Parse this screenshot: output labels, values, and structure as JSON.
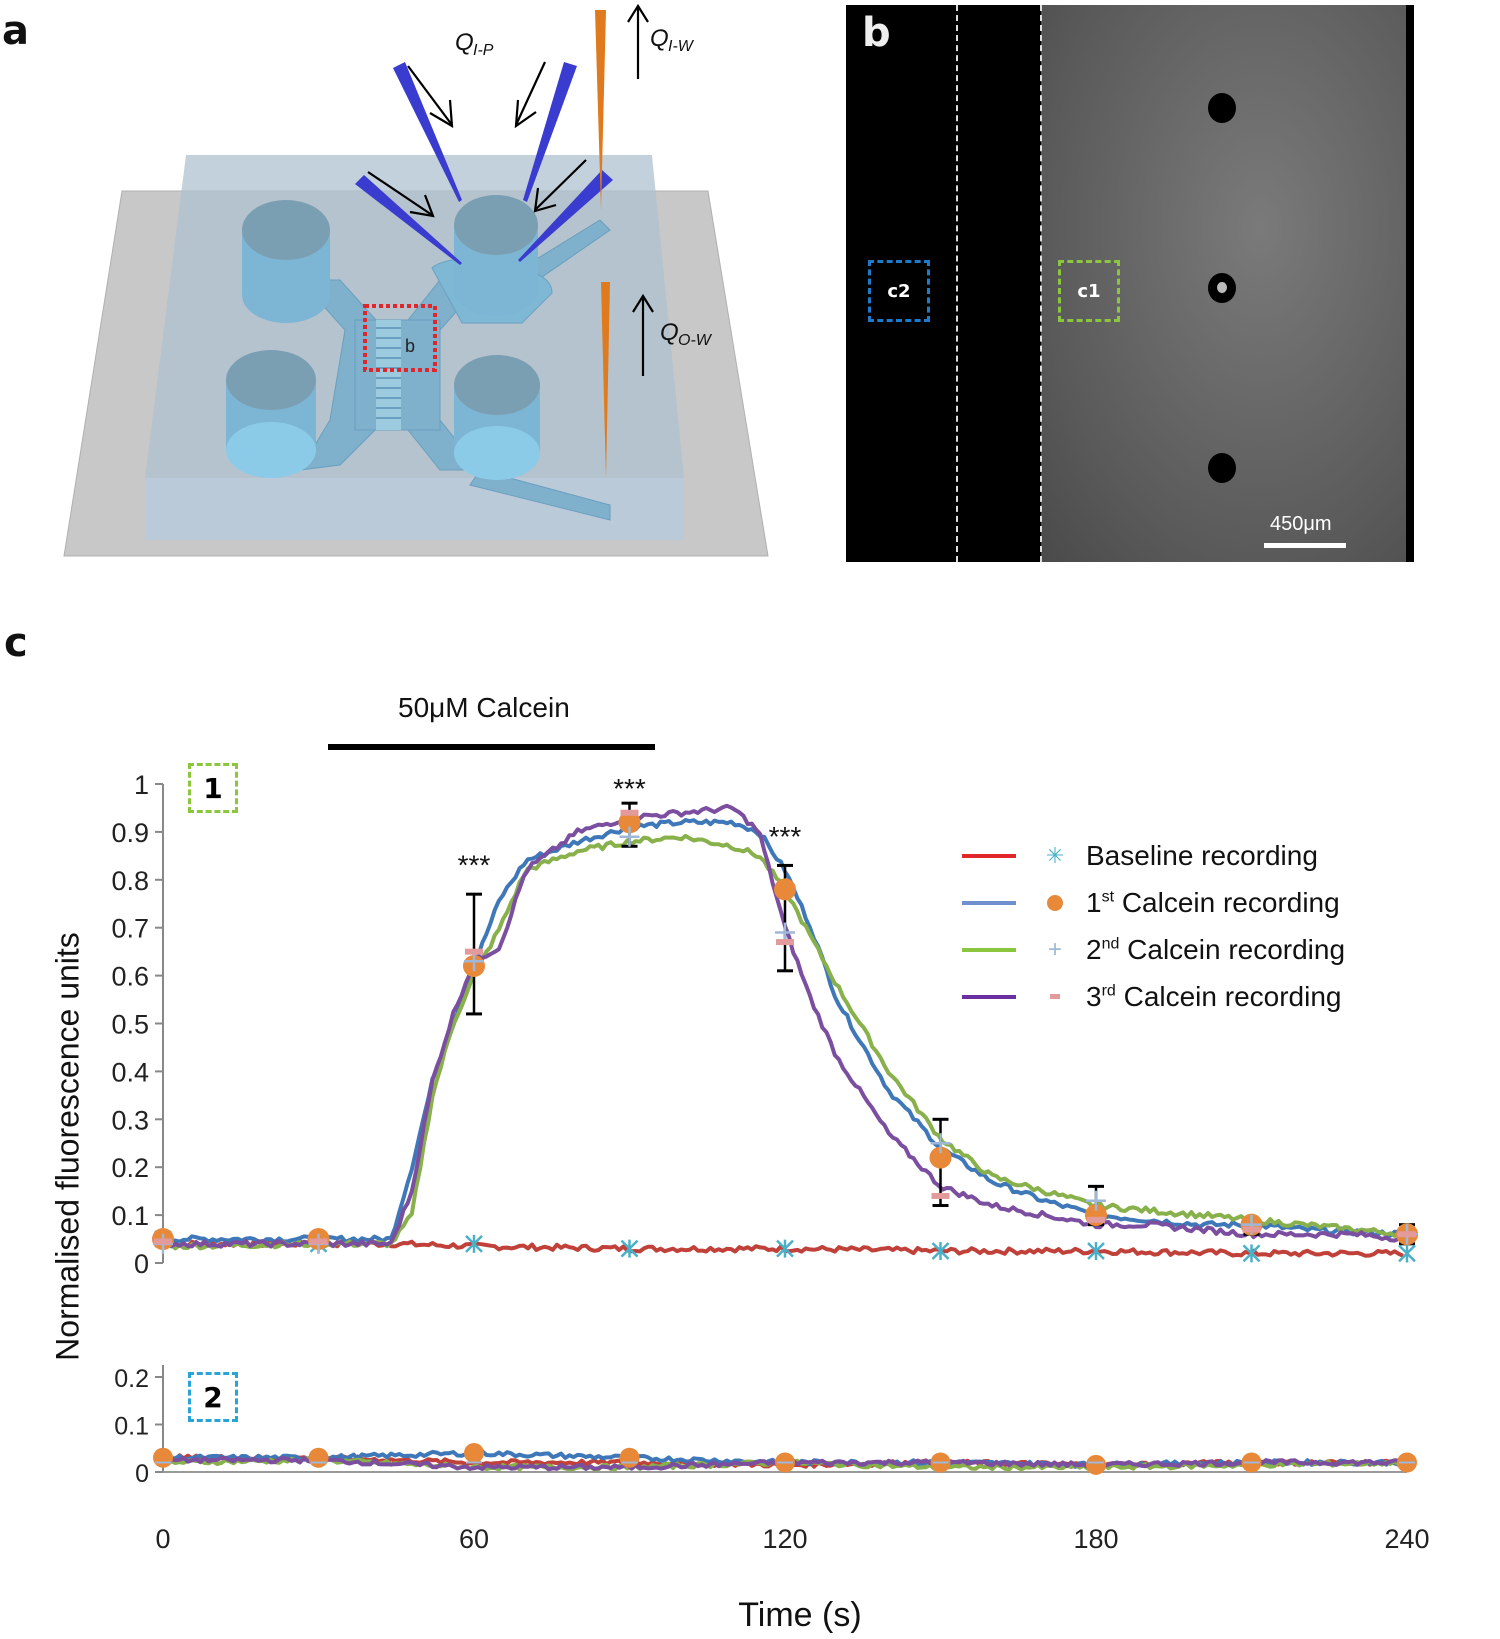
{
  "panels": {
    "a": {
      "letter": "a",
      "labels": {
        "q_ip": "Q",
        "q_ip_sub": "I-P",
        "q_iw": "Q",
        "q_iw_sub": "I-W",
        "q_ow": "Q",
        "q_ow_sub": "O-W",
        "region_b": "b"
      },
      "colors": {
        "base_plate": "#c6c6c6",
        "chip_body": "#9fb8c8",
        "channels": "#8dbdd6",
        "perfusion_pipettes": "#3a3ccf",
        "withdrawal_pipettes": "#e07a1e",
        "region_box": "#e0262b"
      }
    },
    "b": {
      "letter": "b",
      "roi_c2": "c2",
      "roi_c1": "c1",
      "scale_bar": "450μm",
      "colors": {
        "roi_c2": "#1f7ac9",
        "roi_c1": "#8cc63f",
        "background_dark": "#000000",
        "background_gray": "#6a6a6a"
      }
    },
    "c": {
      "letter": "c",
      "stimulus_label": "50μM Calcein",
      "subplot1_badge": "1",
      "subplot2_badge": "2",
      "significance": [
        "***",
        "***",
        "***"
      ]
    }
  },
  "chart_data": {
    "type": "line",
    "title": "",
    "xlabel": "Time (s)",
    "ylabel": "Normalised fluorescence units",
    "stimulus": {
      "label": "50μM Calcein",
      "start_s": 30,
      "end_s": 90
    },
    "legend": {
      "position": "upper right",
      "entries": [
        {
          "name": "Baseline recording",
          "line_color": "#e0262b",
          "marker": "asterisk",
          "marker_color": "#4ab0c8"
        },
        {
          "name": "1st Calcein recording",
          "line_color": "#6f8fcf",
          "marker": "circle",
          "marker_color": "#e8893a"
        },
        {
          "name": "2nd Calcein recording",
          "line_color": "#8cc63f",
          "marker": "plus",
          "marker_color": "#9fb7d8"
        },
        {
          "name": "3rd Calcein recording",
          "line_color": "#6a2fa0",
          "marker": "dash",
          "marker_color": "#e29a9a"
        }
      ]
    },
    "subplots": [
      {
        "id": "1",
        "roi": "c1",
        "ylim": [
          0,
          1
        ],
        "yticks": [
          "0",
          "0.1",
          "0.2",
          "0.3",
          "0.4",
          "0.5",
          "0.6",
          "0.7",
          "0.8",
          "0.9",
          "1"
        ],
        "xlim": [
          0,
          240
        ],
        "xticks": [
          "0",
          "60",
          "120",
          "180",
          "240"
        ],
        "marker_times": [
          0,
          30,
          60,
          90,
          120,
          150,
          180,
          210,
          240
        ],
        "series": [
          {
            "name": "Baseline recording",
            "color": "#c0403a",
            "x": [
              0,
              30,
              45,
              60,
              90,
              120,
              150,
              180,
              210,
              240
            ],
            "values": [
              0.04,
              0.04,
              0.04,
              0.035,
              0.03,
              0.03,
              0.025,
              0.025,
              0.02,
              0.02
            ]
          },
          {
            "name": "1st Calcein recording",
            "color": "#3f78b8",
            "x": [
              0,
              30,
              44,
              48,
              52,
              56,
              60,
              65,
              70,
              80,
              90,
              100,
              110,
              115,
              120,
              125,
              130,
              140,
              150,
              160,
              170,
              180,
              190,
              200,
              210,
              220,
              230,
              240
            ],
            "values": [
              0.05,
              0.05,
              0.05,
              0.2,
              0.38,
              0.5,
              0.62,
              0.76,
              0.84,
              0.88,
              0.91,
              0.92,
              0.92,
              0.9,
              0.82,
              0.7,
              0.55,
              0.36,
              0.24,
              0.17,
              0.13,
              0.1,
              0.09,
              0.08,
              0.08,
              0.07,
              0.065,
              0.06
            ]
          },
          {
            "name": "2nd Calcein recording",
            "color": "#88b04b",
            "x": [
              0,
              30,
              44,
              48,
              52,
              56,
              60,
              65,
              70,
              80,
              90,
              100,
              110,
              115,
              120,
              125,
              130,
              140,
              150,
              160,
              170,
              180,
              190,
              200,
              210,
              220,
              230,
              240
            ],
            "values": [
              0.035,
              0.04,
              0.04,
              0.1,
              0.35,
              0.5,
              0.6,
              0.7,
              0.82,
              0.86,
              0.88,
              0.89,
              0.87,
              0.85,
              0.78,
              0.68,
              0.58,
              0.4,
              0.26,
              0.18,
              0.15,
              0.12,
              0.11,
              0.1,
              0.09,
              0.08,
              0.07,
              0.06
            ]
          },
          {
            "name": "3rd Calcein recording",
            "color": "#7b4ea0",
            "x": [
              0,
              30,
              44,
              48,
              52,
              56,
              60,
              65,
              70,
              80,
              90,
              100,
              110,
              115,
              120,
              125,
              130,
              140,
              150,
              160,
              170,
              180,
              190,
              200,
              210,
              220,
              230,
              240
            ],
            "values": [
              0.04,
              0.04,
              0.04,
              0.15,
              0.38,
              0.52,
              0.63,
              0.66,
              0.82,
              0.9,
              0.93,
              0.94,
              0.95,
              0.9,
              0.7,
              0.55,
              0.43,
              0.27,
              0.16,
              0.12,
              0.1,
              0.08,
              0.08,
              0.07,
              0.06,
              0.06,
              0.06,
              0.05
            ]
          }
        ],
        "markers_mean": {
          "x": [
            0,
            30,
            60,
            90,
            120,
            150,
            180,
            210,
            240
          ],
          "calcein_1st": [
            0.05,
            0.05,
            0.62,
            0.92,
            0.78,
            0.22,
            0.1,
            0.08,
            0.06
          ],
          "calcein_2nd": [
            0.04,
            0.04,
            0.63,
            0.89,
            0.69,
            0.25,
            0.13,
            0.08,
            0.06
          ],
          "calcein_3rd": [
            0.045,
            0.045,
            0.65,
            0.94,
            0.67,
            0.14,
            0.09,
            0.07,
            0.06
          ],
          "baseline": [
            0.05,
            0.04,
            0.04,
            0.03,
            0.03,
            0.025,
            0.025,
            0.02,
            0.02
          ]
        },
        "error_bars": [
          {
            "x": 60,
            "low": 0.52,
            "high": 0.77
          },
          {
            "x": 90,
            "low": 0.87,
            "high": 0.96
          },
          {
            "x": 120,
            "low": 0.61,
            "high": 0.83
          },
          {
            "x": 150,
            "low": 0.12,
            "high": 0.3
          },
          {
            "x": 180,
            "low": 0.08,
            "high": 0.16
          },
          {
            "x": 210,
            "low": 0.06,
            "high": 0.09
          },
          {
            "x": 240,
            "low": 0.04,
            "high": 0.08
          }
        ],
        "annotations": [
          {
            "text": "***",
            "x": 60,
            "y": 0.84
          },
          {
            "text": "***",
            "x": 90,
            "y": 1.0
          },
          {
            "text": "***",
            "x": 120,
            "y": 0.9
          }
        ]
      },
      {
        "id": "2",
        "roi": "c2",
        "ylim": [
          0,
          0.23
        ],
        "yticks": [
          "0",
          "0.1",
          "0.2"
        ],
        "xlim": [
          0,
          240
        ],
        "xticks": [
          "0",
          "60",
          "120",
          "180",
          "240"
        ],
        "series": [
          {
            "name": "Baseline recording",
            "color": "#c0403a",
            "x": [
              0,
              30,
              60,
              90,
              120,
              150,
              180,
              210,
              240
            ],
            "values": [
              0.03,
              0.03,
              0.02,
              0.02,
              0.015,
              0.02,
              0.015,
              0.02,
              0.02
            ]
          },
          {
            "name": "1st Calcein recording",
            "color": "#3f78b8",
            "x": [
              0,
              30,
              60,
              90,
              120,
              150,
              180,
              210,
              240
            ],
            "values": [
              0.03,
              0.03,
              0.04,
              0.03,
              0.02,
              0.02,
              0.015,
              0.02,
              0.02
            ]
          },
          {
            "name": "2nd Calcein recording",
            "color": "#88b04b",
            "x": [
              0,
              30,
              60,
              90,
              120,
              150,
              180,
              210,
              240
            ],
            "values": [
              0.02,
              0.025,
              0.01,
              0.01,
              0.02,
              0.01,
              0.01,
              0.015,
              0.02
            ]
          },
          {
            "name": "3rd Calcein recording",
            "color": "#7b4ea0",
            "x": [
              0,
              30,
              60,
              90,
              120,
              150,
              180,
              210,
              240
            ],
            "values": [
              0.025,
              0.025,
              0.01,
              0.01,
              0.02,
              0.02,
              0.015,
              0.02,
              0.02
            ]
          }
        ]
      }
    ]
  }
}
